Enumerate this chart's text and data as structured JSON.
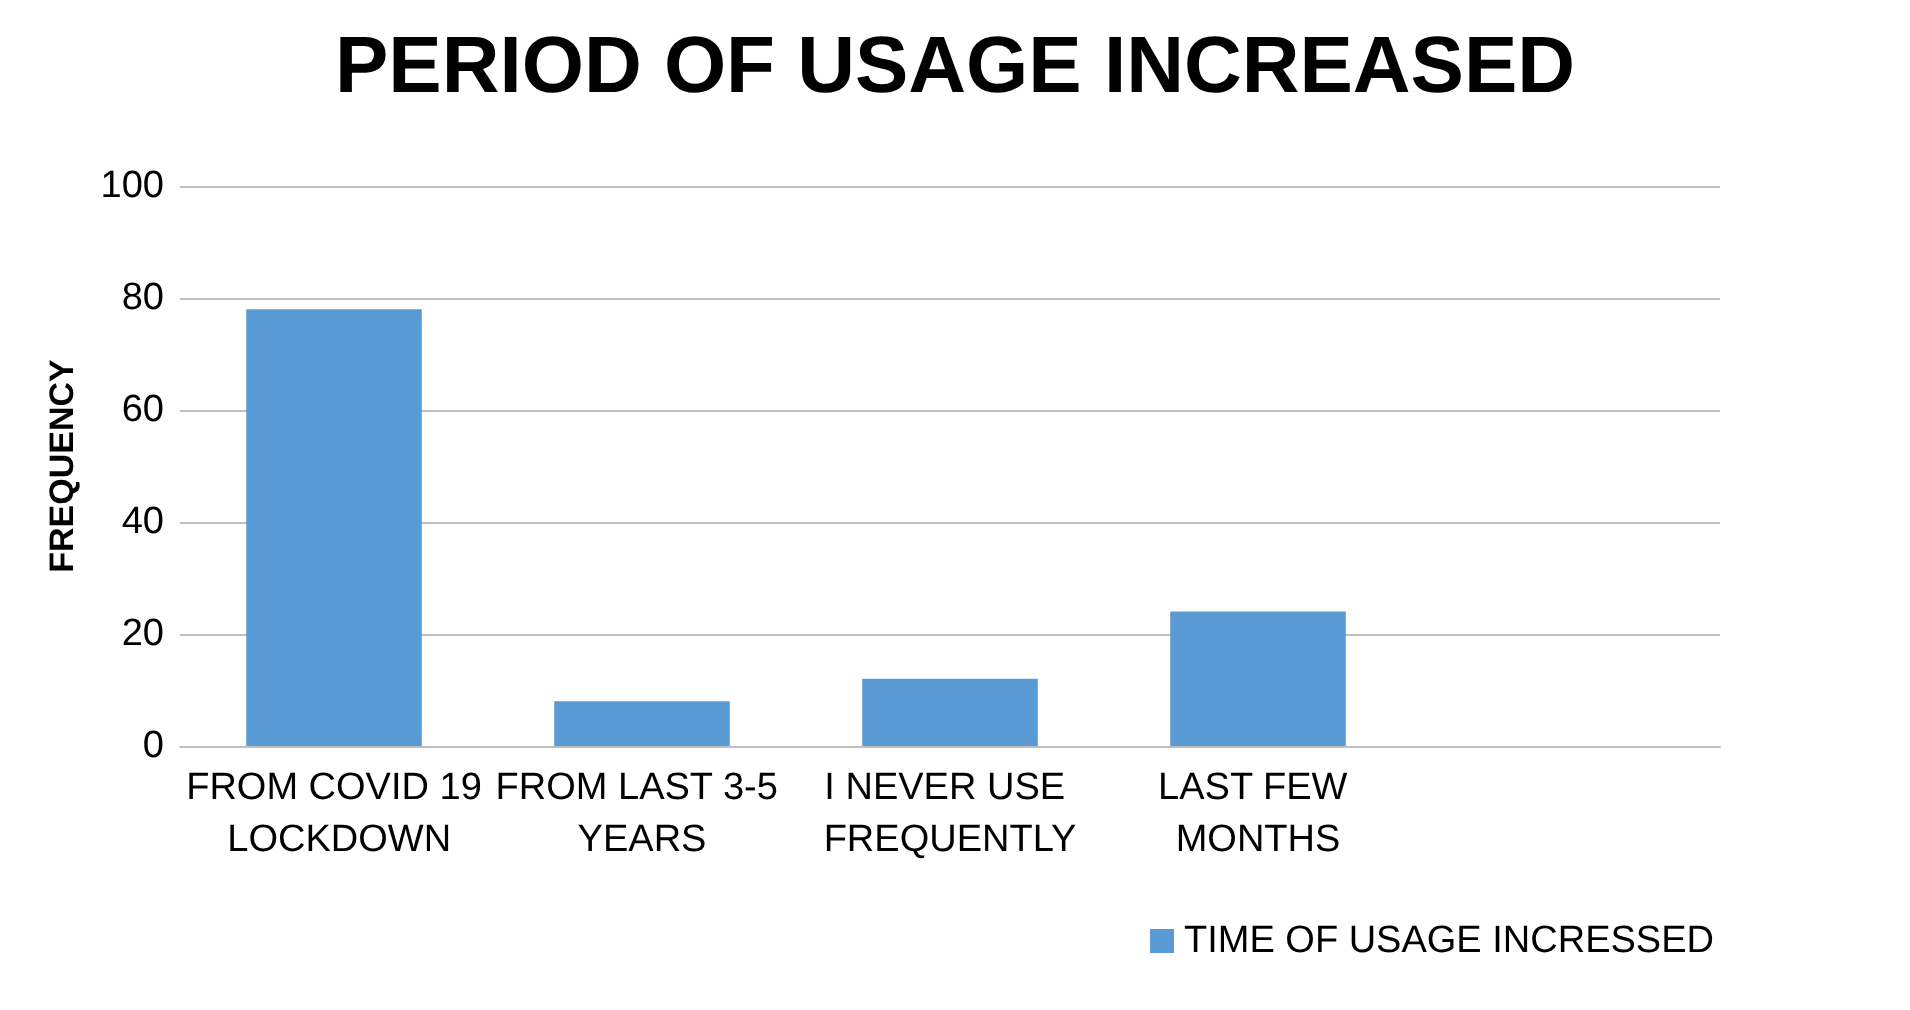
{
  "chart_data": {
    "type": "bar",
    "title": "PERIOD OF USAGE INCREASED",
    "ylabel": "FREQUENCY",
    "categories": [
      "FROM COVID 19 LOCKDOWN",
      "FROM LAST 3-5 YEARS",
      "I NEVER USE FREQUENTLY",
      "LAST FEW MONTHS",
      null
    ],
    "series": [
      {
        "name": "TIME OF USAGE INCRESSED",
        "color": "#5b9bd5",
        "values": [
          78,
          8,
          12,
          24,
          null
        ]
      }
    ],
    "ylim": [
      0,
      100
    ],
    "yticks": [
      0,
      20,
      40,
      60,
      80,
      100
    ],
    "grid": "y",
    "legend": "bottom"
  }
}
